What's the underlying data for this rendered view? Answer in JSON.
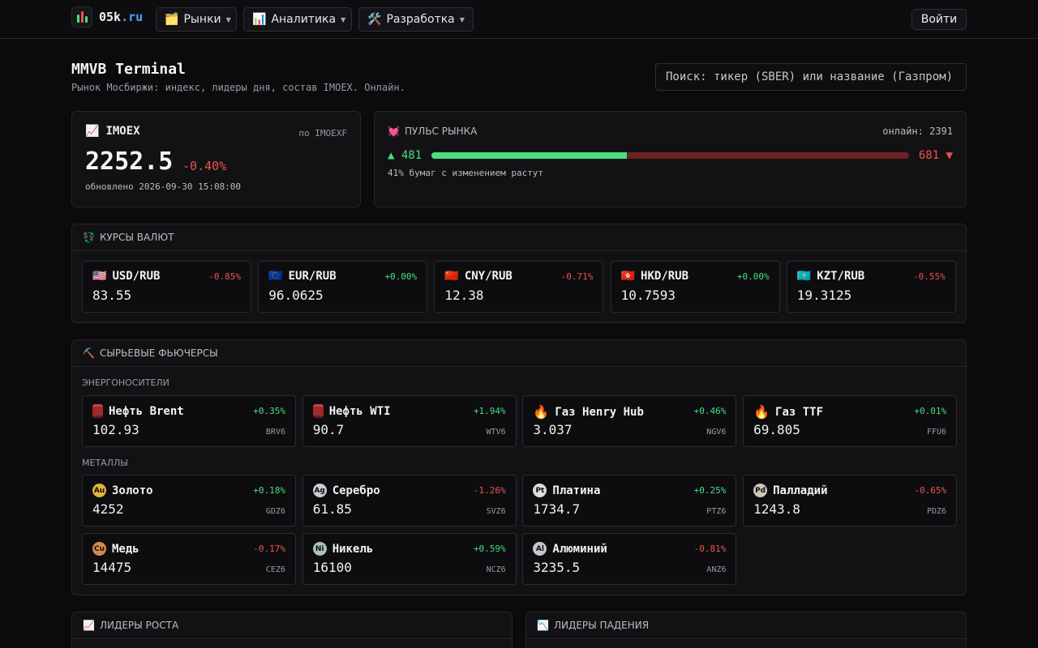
{
  "header": {
    "logo_text": "05k",
    "logo_tld": ".ru",
    "nav": [
      {
        "icon": "folder-icon",
        "label": "Рынки"
      },
      {
        "icon": "chart-icon",
        "label": "Аналитика"
      },
      {
        "icon": "tools-icon",
        "label": "Разработка"
      }
    ],
    "login_label": "Войти"
  },
  "page": {
    "title": "MMVB Terminal",
    "subtitle": "Рынок Мосбиржи: индекс, лидеры дня, состав IMOEX. Онлайн.",
    "search_placeholder": "Поиск: тикер (SBER) или название (Газпром)"
  },
  "imoex": {
    "icon": "chart-up-icon",
    "title": "IMOEX",
    "source": "по IMOEXF",
    "value": "2252.5",
    "change": "-0.40%",
    "updated": "обновлено 2026-09-30 15:08:00"
  },
  "pulse": {
    "icon": "heart-icon",
    "title": "ПУЛЬС РЫНКА",
    "online": "онлайн: 2391",
    "up": "▲ 481",
    "down": "681 ▼",
    "up_fraction": 0.41,
    "note": "41% бумаг с изменением растут"
  },
  "currencies": {
    "icon": "exchange-icon",
    "title": "КУРСЫ ВАЛЮТ",
    "items": [
      {
        "flag": "🇺🇸",
        "pair": "USD/RUB",
        "change": "-0.85%",
        "dir": "neg",
        "value": "83.55"
      },
      {
        "flag": "🇪🇺",
        "pair": "EUR/RUB",
        "change": "+0.00%",
        "dir": "pos",
        "value": "96.0625"
      },
      {
        "flag": "🇨🇳",
        "pair": "CNY/RUB",
        "change": "-0.71%",
        "dir": "neg",
        "value": "12.38"
      },
      {
        "flag": "🇭🇰",
        "pair": "HKD/RUB",
        "change": "+0.00%",
        "dir": "pos",
        "value": "10.7593"
      },
      {
        "flag": "🇰🇿",
        "pair": "KZT/RUB",
        "change": "-0.55%",
        "dir": "neg",
        "value": "19.3125"
      }
    ]
  },
  "futures": {
    "icon": "pickaxe-icon",
    "title": "СЫРЬЕВЫЕ ФЬЮЧЕРСЫ",
    "energy_label": "ЭНЕРГОНОСИТЕЛИ",
    "metals_label": "МЕТАЛЛЫ",
    "energy": [
      {
        "icon": "barrel",
        "name": "Нефть Brent",
        "change": "+0.35%",
        "dir": "pos",
        "value": "102.93",
        "ticker": "BRV6"
      },
      {
        "icon": "barrel",
        "name": "Нефть WTI",
        "change": "+1.94%",
        "dir": "pos",
        "value": "90.7",
        "ticker": "WTV6"
      },
      {
        "icon": "flame",
        "name": "Газ Henry Hub",
        "change": "+0.46%",
        "dir": "pos",
        "value": "3.037",
        "ticker": "NGV6"
      },
      {
        "icon": "flame",
        "name": "Газ TTF",
        "change": "+0.01%",
        "dir": "pos",
        "value": "69.805",
        "ticker": "FFU6"
      }
    ],
    "metals": [
      {
        "badge": "Au",
        "badge_color": "#e0b23a",
        "name": "Золото",
        "change": "+0.18%",
        "dir": "pos",
        "value": "4252",
        "ticker": "GDZ6"
      },
      {
        "badge": "Ag",
        "badge_color": "#c9ccd2",
        "name": "Серебро",
        "change": "-1.26%",
        "dir": "neg",
        "value": "61.85",
        "ticker": "SVZ6"
      },
      {
        "badge": "Pt",
        "badge_color": "#dcdde0",
        "name": "Платина",
        "change": "+0.25%",
        "dir": "pos",
        "value": "1734.7",
        "ticker": "PTZ6"
      },
      {
        "badge": "Pd",
        "badge_color": "#cfc8b8",
        "name": "Палладий",
        "change": "-0.65%",
        "dir": "neg",
        "value": "1243.8",
        "ticker": "PDZ6"
      },
      {
        "badge": "Cu",
        "badge_color": "#d98a4a",
        "name": "Медь",
        "change": "-0.17%",
        "dir": "neg",
        "value": "14475",
        "ticker": "CEZ6"
      },
      {
        "badge": "Ni",
        "badge_color": "#a9c4b6",
        "name": "Никель",
        "change": "+0.59%",
        "dir": "pos",
        "value": "16100",
        "ticker": "NCZ6"
      },
      {
        "badge": "Al",
        "badge_color": "#c4c7cc",
        "name": "Алюминий",
        "change": "-0.81%",
        "dir": "neg",
        "value": "3235.5",
        "ticker": "ANZ6"
      }
    ]
  },
  "leaders": {
    "up_icon": "chart-up-icon",
    "up_title": "ЛИДЕРЫ РОСТА",
    "down_icon": "chart-down-icon",
    "down_title": "ЛИДЕРЫ ПАДЕНИЯ"
  }
}
